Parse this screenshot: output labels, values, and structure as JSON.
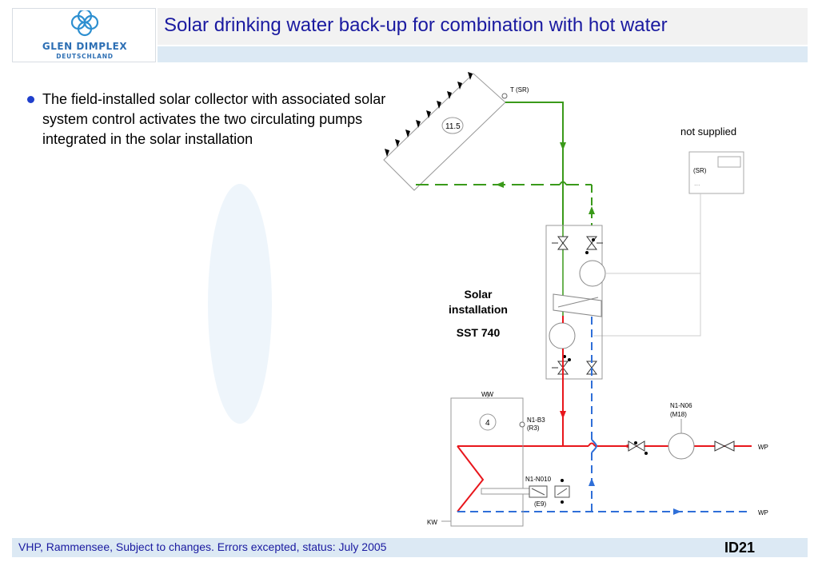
{
  "header": {
    "logo_line1": "GLEN DIMPLEX",
    "logo_line2": "DEUTSCHLAND",
    "title": "Solar drinking water back-up for combination with hot water"
  },
  "body": {
    "bullet": "The field-installed solar collector with associated solar system control activates the two circulating pumps integrated in the solar installation"
  },
  "diagram": {
    "collector_id": "11.5",
    "sensor_t": "T (SR)",
    "not_supplied": "not supplied",
    "controller_label": "(SR)",
    "controller_dots": "...",
    "solar_title_1": "Solar",
    "solar_title_2": "installation",
    "solar_model": "SST 740",
    "tank_ww": "WW",
    "tank_id": "4",
    "sensor_b3_1": "N1-B3",
    "sensor_b3_2": "(R3)",
    "pump_n06_1": "N1-N06",
    "pump_n06_2": "(M18)",
    "heater_1": "N1-N010",
    "heater_2": "(E9)",
    "wp_top": "WP",
    "wp_bottom": "WP",
    "kw": "KW",
    "colors": {
      "flow": "#e8161c",
      "return": "#2f6fd8",
      "solar": "#3a9a1a",
      "pipe_gray": "#aaaaaa"
    }
  },
  "footer": {
    "text": "VHP, Rammensee, Subject to changes. Errors excepted, status: July 2005",
    "id": "ID21"
  }
}
